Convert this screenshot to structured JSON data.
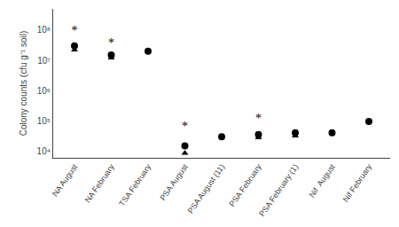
{
  "chart_data": {
    "type": "scatter",
    "categories": [
      "NA August",
      "NA February",
      "TSA February",
      "PSA August",
      "PSA August (11)",
      "PSA February",
      "PSA February (1)",
      "Nif  August",
      "Nif February"
    ],
    "series": [
      {
        "marker": "circle",
        "color": "#000000",
        "values": [
          30000000.0,
          15000000.0,
          20000000.0,
          15000.0,
          30000.0,
          35000.0,
          40000.0,
          40000.0,
          95000.0
        ]
      },
      {
        "marker": "triangle-up",
        "color": "#000000",
        "values": [
          22000000.0,
          12000000.0,
          null,
          8500.0,
          null,
          28000.0,
          32000.0,
          null,
          null
        ]
      }
    ],
    "annotations": [
      {
        "x": "NA August",
        "y": 90000000.0,
        "text": "*",
        "color": "#000000"
      },
      {
        "x": "NA February",
        "y": 35000000.0,
        "text": "*",
        "color": "#000000"
      },
      {
        "x": "PSA August",
        "y": 60000.0,
        "text": "*",
        "color": "#000000"
      },
      {
        "x": "PSA February",
        "y": 110000.0,
        "text": "*",
        "color": "#000000"
      }
    ],
    "ylabel": "Colony counts (cfu g⁻¹ soil)",
    "log": "y",
    "ylim": [
      6000,
      500000000.0
    ],
    "yticks": [
      {
        "value": 10000,
        "label": "10⁴"
      },
      {
        "value": 100000,
        "label": "10⁵"
      },
      {
        "value": 1000000,
        "label": "10⁶"
      },
      {
        "value": 10000000,
        "label": "10⁷"
      },
      {
        "value": 100000000,
        "label": "10⁸"
      }
    ],
    "grid": false
  }
}
